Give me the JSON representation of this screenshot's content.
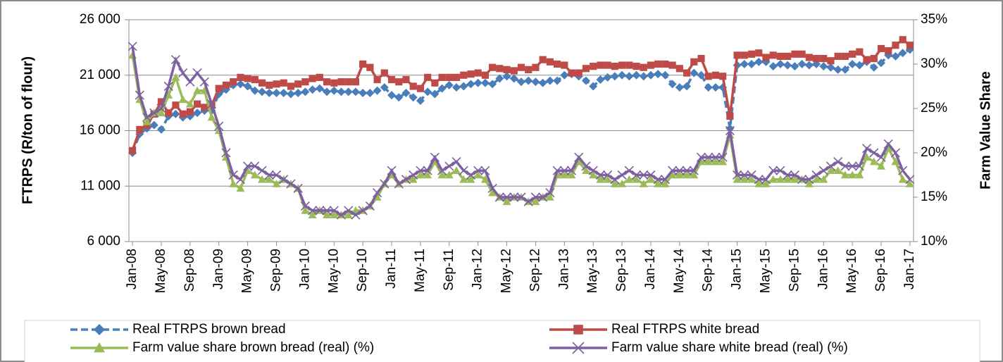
{
  "chart_data": {
    "type": "line",
    "y_label": "FTRPS (R/ton of flour)",
    "y2_label": "Farm Value Share",
    "categories": [
      "Jan-08",
      null,
      null,
      null,
      "May-08",
      null,
      null,
      null,
      "Sep-08",
      null,
      null,
      null,
      "Jan-09",
      null,
      null,
      null,
      "May-09",
      null,
      null,
      null,
      "Sep-09",
      null,
      null,
      null,
      "Jan-10",
      null,
      null,
      null,
      "May-10",
      null,
      null,
      null,
      "Sep-10",
      null,
      null,
      null,
      "Jan-11",
      null,
      null,
      null,
      "May-11",
      null,
      null,
      null,
      "Sep-11",
      null,
      null,
      null,
      "Jan-12",
      null,
      null,
      null,
      "May-12",
      null,
      null,
      null,
      "Sep-12",
      null,
      null,
      null,
      "Jan-13",
      null,
      null,
      null,
      "May-13",
      null,
      null,
      null,
      "Sep-13",
      null,
      null,
      null,
      "Jan-14",
      null,
      null,
      null,
      "May-14",
      null,
      null,
      null,
      "Sep-14",
      null,
      null,
      null,
      "Jan-15",
      null,
      null,
      null,
      "May-15",
      null,
      null,
      null,
      "Sep-15",
      null,
      null,
      null,
      "Jan-16",
      null,
      null,
      null,
      "May-16",
      null,
      null,
      null,
      "Sep-16",
      null,
      null,
      null,
      "Jan-17"
    ],
    "ylim": [
      6000,
      26000
    ],
    "yticks": [
      {
        "value": 6000,
        "label": "6 000"
      },
      {
        "value": 11000,
        "label": "11 000"
      },
      {
        "value": 16000,
        "label": "16 000"
      },
      {
        "value": 21000,
        "label": "21 000"
      },
      {
        "value": 26000,
        "label": "26 000"
      }
    ],
    "y2lim": [
      10,
      35
    ],
    "y2ticks": [
      {
        "value": 10,
        "label": "10%"
      },
      {
        "value": 15,
        "label": "15%"
      },
      {
        "value": 20,
        "label": "20%"
      },
      {
        "value": 25,
        "label": "25%"
      },
      {
        "value": 30,
        "label": "30%"
      },
      {
        "value": 35,
        "label": "35%"
      }
    ],
    "grid": true,
    "legend": "bottom",
    "series": [
      {
        "name": "Real FTRPS brown bread",
        "color": "#4a7ebb",
        "marker": "diamond",
        "dashed": true,
        "values": [
          14000,
          15700,
          16200,
          16500,
          16100,
          17300,
          17500,
          17200,
          17300,
          17600,
          17800,
          17800,
          19300,
          19700,
          20100,
          20200,
          20000,
          19600,
          19500,
          19400,
          19400,
          19400,
          19300,
          19400,
          19500,
          19700,
          19800,
          19500,
          19600,
          19500,
          19500,
          19500,
          19400,
          19400,
          19600,
          19900,
          19200,
          19000,
          19400,
          19000,
          18700,
          19500,
          19300,
          19800,
          20100,
          19900,
          20000,
          20200,
          20300,
          20300,
          20200,
          20700,
          20900,
          20700,
          20400,
          20500,
          20400,
          20300,
          20500,
          20500,
          21000,
          21100,
          20900,
          20500,
          20000,
          20600,
          20800,
          20900,
          21000,
          20900,
          21000,
          20900,
          21000,
          21100,
          21000,
          20200,
          19900,
          20000,
          21200,
          21000,
          19900,
          19900,
          19900,
          16200,
          21900,
          22000,
          22000,
          22200,
          22200,
          21800,
          22000,
          21900,
          21800,
          22000,
          21900,
          22000,
          21800,
          21700,
          21500,
          21500,
          22000,
          21900,
          22200,
          21700,
          22100,
          22800,
          22700,
          23000,
          23300
        ]
      },
      {
        "name": "Real FTRPS white bread",
        "color": "#be4b48",
        "marker": "square",
        "values": [
          14200,
          16100,
          16500,
          17500,
          18600,
          17600,
          18300,
          17500,
          17700,
          18400,
          18100,
          18300,
          19800,
          20100,
          20400,
          20800,
          20700,
          20600,
          20300,
          20100,
          20200,
          20300,
          20000,
          20200,
          20400,
          20700,
          20800,
          20400,
          20300,
          20400,
          20400,
          20400,
          22000,
          21700,
          20600,
          21200,
          20600,
          20400,
          20600,
          20000,
          19800,
          20800,
          20300,
          20800,
          20800,
          20800,
          21000,
          21100,
          21200,
          21000,
          21700,
          21600,
          21500,
          21400,
          21700,
          21500,
          21700,
          22400,
          22200,
          22000,
          21900,
          21200,
          21200,
          21600,
          21800,
          21900,
          21900,
          21800,
          21900,
          21900,
          21800,
          21700,
          21900,
          22000,
          22000,
          21900,
          21600,
          21200,
          22200,
          22500,
          20900,
          21000,
          20900,
          17300,
          22800,
          22800,
          22900,
          23000,
          22600,
          22800,
          22700,
          22700,
          22900,
          22900,
          22600,
          22500,
          22500,
          22300,
          22700,
          22700,
          22900,
          23100,
          22400,
          22500,
          23400,
          23200,
          23700,
          24200,
          23700
        ]
      },
      {
        "name": "Farm value share brown bread (real) (%)",
        "color": "#9bbb59",
        "marker": "triangle",
        "axis": "y2",
        "values": [
          31,
          26,
          23.5,
          24.5,
          24.5,
          26.5,
          28.5,
          26,
          25.5,
          27,
          27,
          24,
          22.5,
          19.5,
          16.5,
          16,
          18,
          17.5,
          17,
          17,
          16.5,
          17,
          16.5,
          16,
          13.5,
          13,
          13.5,
          13,
          13,
          13,
          13,
          13.5,
          13.5,
          14,
          15,
          16.5,
          17.5,
          16.5,
          17,
          17,
          17.5,
          17.5,
          19,
          17.5,
          17.5,
          18,
          17,
          17,
          17.5,
          17,
          15.5,
          15,
          14.5,
          15,
          15,
          14.5,
          14.5,
          15,
          15,
          17.5,
          17.5,
          17.5,
          19,
          18,
          17.5,
          17,
          17,
          16.5,
          16.5,
          17,
          17,
          16.5,
          17,
          16.5,
          16.5,
          17.5,
          17.5,
          17.5,
          17.5,
          19,
          19,
          19,
          19,
          22,
          17,
          17,
          17,
          16.5,
          16.5,
          17,
          17,
          17,
          17,
          17,
          16.5,
          17,
          17,
          18,
          18,
          17.5,
          17.5,
          17.5,
          19.5,
          19,
          18.5,
          20.5,
          19,
          17,
          16.5
        ]
      },
      {
        "name": "Farm value share white bread (real) (%)",
        "color": "#7d60a0",
        "marker": "x",
        "axis": "y2",
        "values": [
          32,
          26.5,
          24,
          24.5,
          25,
          27.5,
          30.5,
          29,
          28,
          29,
          28,
          25.5,
          23,
          20,
          17.5,
          17,
          18.5,
          18.5,
          18,
          17.5,
          17.5,
          17,
          16.5,
          16,
          14,
          13.5,
          13.5,
          13.5,
          13.5,
          13,
          13.5,
          13,
          13.5,
          14,
          15.5,
          16.5,
          18,
          16.5,
          17,
          17.5,
          18,
          18,
          19.5,
          18,
          18.5,
          19,
          18,
          17.5,
          18,
          18,
          16,
          15,
          15,
          15,
          15,
          14.5,
          15,
          15,
          15.5,
          18,
          18,
          18,
          19.5,
          18.5,
          18,
          17.5,
          17.5,
          17,
          17.5,
          18,
          17.5,
          17.5,
          17.5,
          17,
          17,
          18,
          18,
          18,
          18,
          19.5,
          19.5,
          19.5,
          19.5,
          22.5,
          17.5,
          17.5,
          17.5,
          17,
          17,
          18,
          18,
          17.5,
          17.5,
          17,
          17,
          17.5,
          18,
          18.5,
          19,
          18.5,
          18.5,
          18.5,
          20.5,
          20,
          19.5,
          21,
          20,
          18,
          17
        ]
      }
    ]
  }
}
